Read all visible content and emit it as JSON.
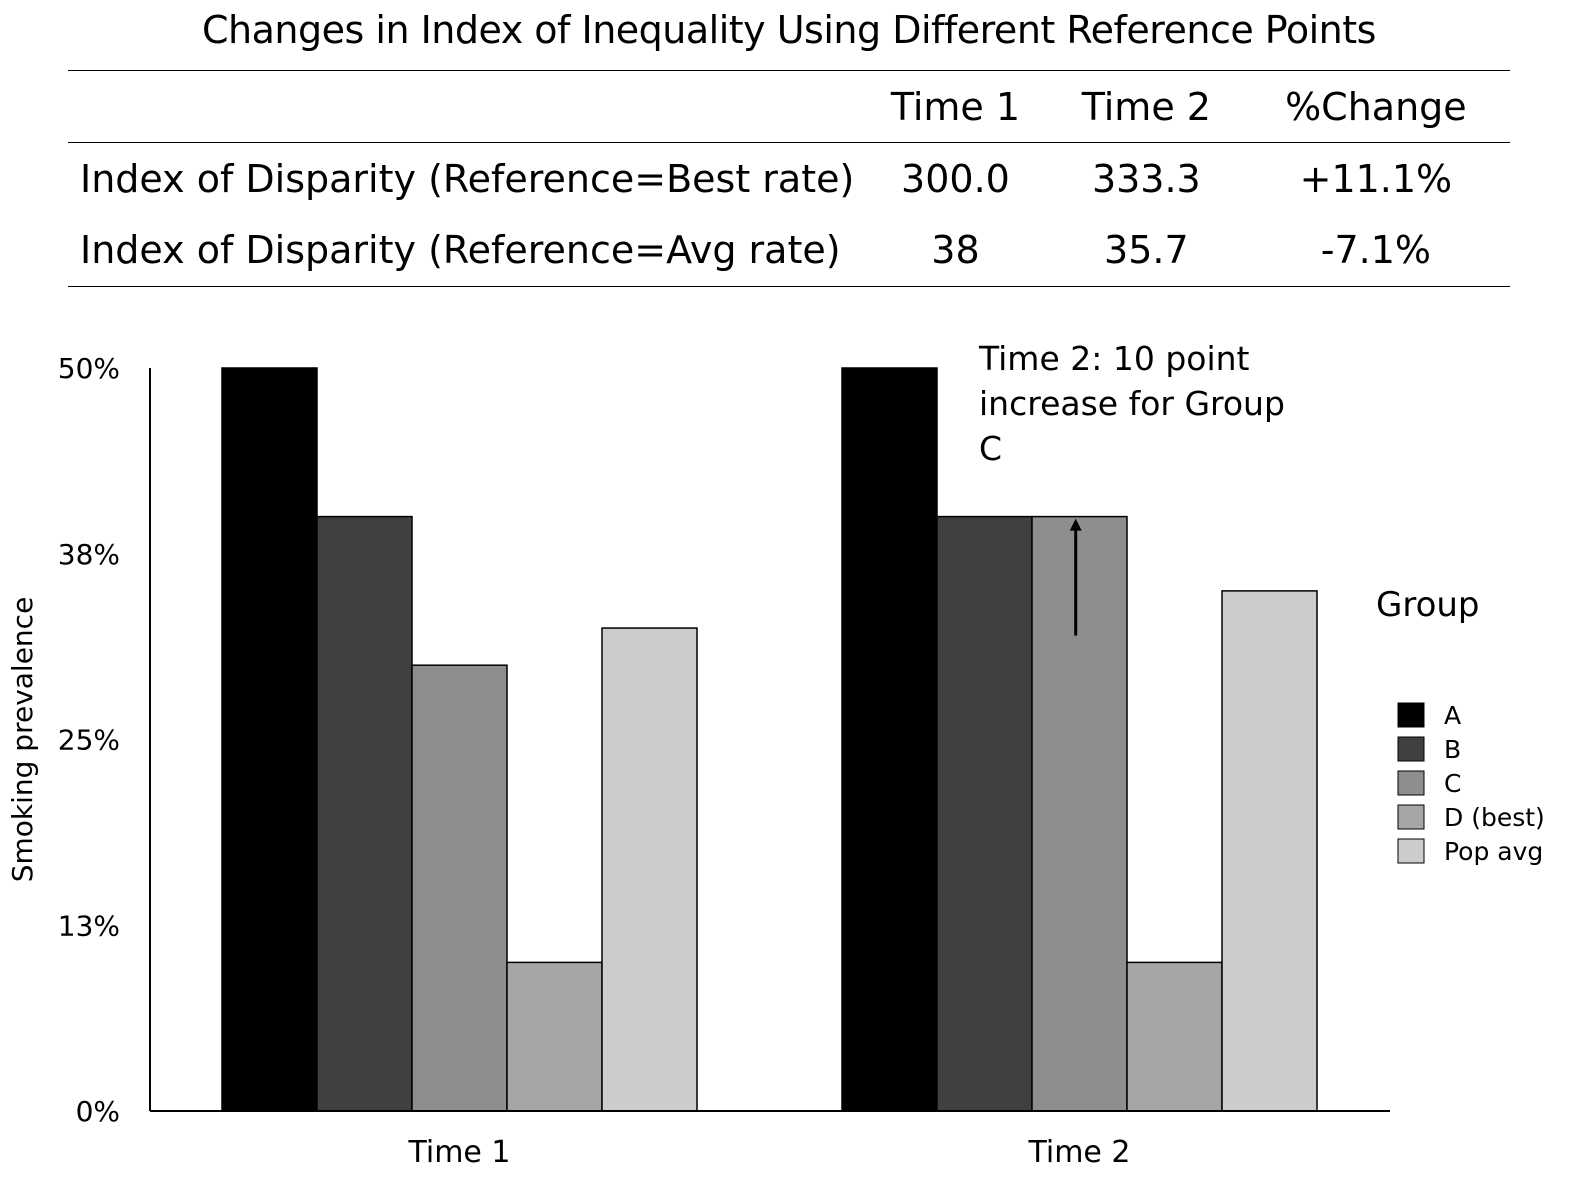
{
  "title": "Changes in Index of Inequality Using Different Reference Points",
  "table": {
    "headers": [
      "",
      "Time 1",
      "Time 2",
      "%Change"
    ],
    "rows": [
      {
        "label": "Index of Disparity (Reference=Best rate)",
        "time1": "300.0",
        "time2": "333.3",
        "change": "+11.1%"
      },
      {
        "label": "Index of Disparity (Reference=Avg rate)",
        "time1": "38",
        "time2": "35.7",
        "change": "-7.1%"
      }
    ]
  },
  "annotation": "Time 2: 10 point increase for Group C",
  "chart_data": {
    "type": "bar",
    "categories": [
      "Time 1",
      "Time 2"
    ],
    "ylabel": "Smoking prevalence",
    "xlabel": "",
    "ylim": [
      0,
      50
    ],
    "yticks": [
      0,
      12.5,
      25,
      37.5,
      50
    ],
    "ytick_labels": [
      "0%",
      "13%",
      "25%",
      "38%",
      "50%"
    ],
    "legend_title": "Group",
    "legend_position": "right",
    "grid": false,
    "series": [
      {
        "name": "A",
        "color": "#000000",
        "values": [
          50,
          50
        ]
      },
      {
        "name": "B",
        "color": "#404040",
        "values": [
          40,
          40
        ]
      },
      {
        "name": "C",
        "color": "#8e8e8e",
        "values": [
          30,
          40
        ]
      },
      {
        "name": "D (best)",
        "color": "#a6a6a6",
        "values": [
          10,
          10
        ]
      },
      {
        "name": "Pop avg",
        "color": "#cccccc",
        "values": [
          32.5,
          35
        ]
      }
    ],
    "arrow": {
      "series": "C",
      "category": "Time 2",
      "from": 32,
      "to": 40
    }
  }
}
